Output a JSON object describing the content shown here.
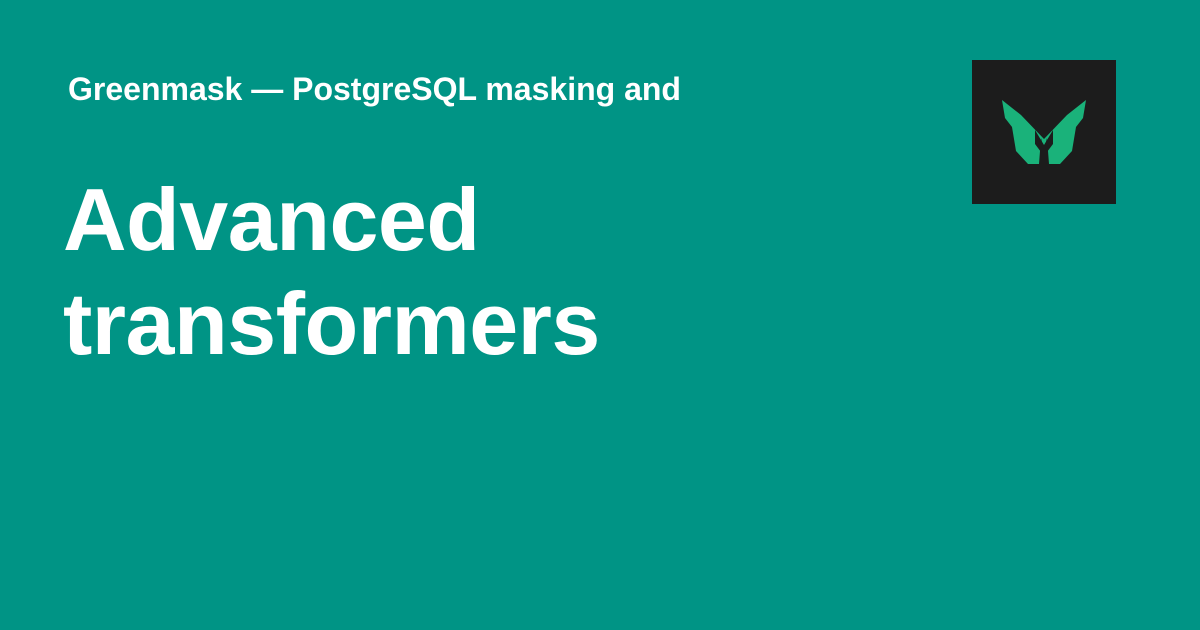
{
  "colors": {
    "background": "#009485",
    "text": "#ffffff",
    "logo_background": "#1c1c1c",
    "logo_mark": "#1ab27a"
  },
  "site": {
    "name": "Greenmask — PostgreSQL masking and"
  },
  "page": {
    "title_lines": [
      "Advanced",
      "transformers"
    ]
  },
  "logo": {
    "icon": "greenmask-m-logo-icon"
  }
}
